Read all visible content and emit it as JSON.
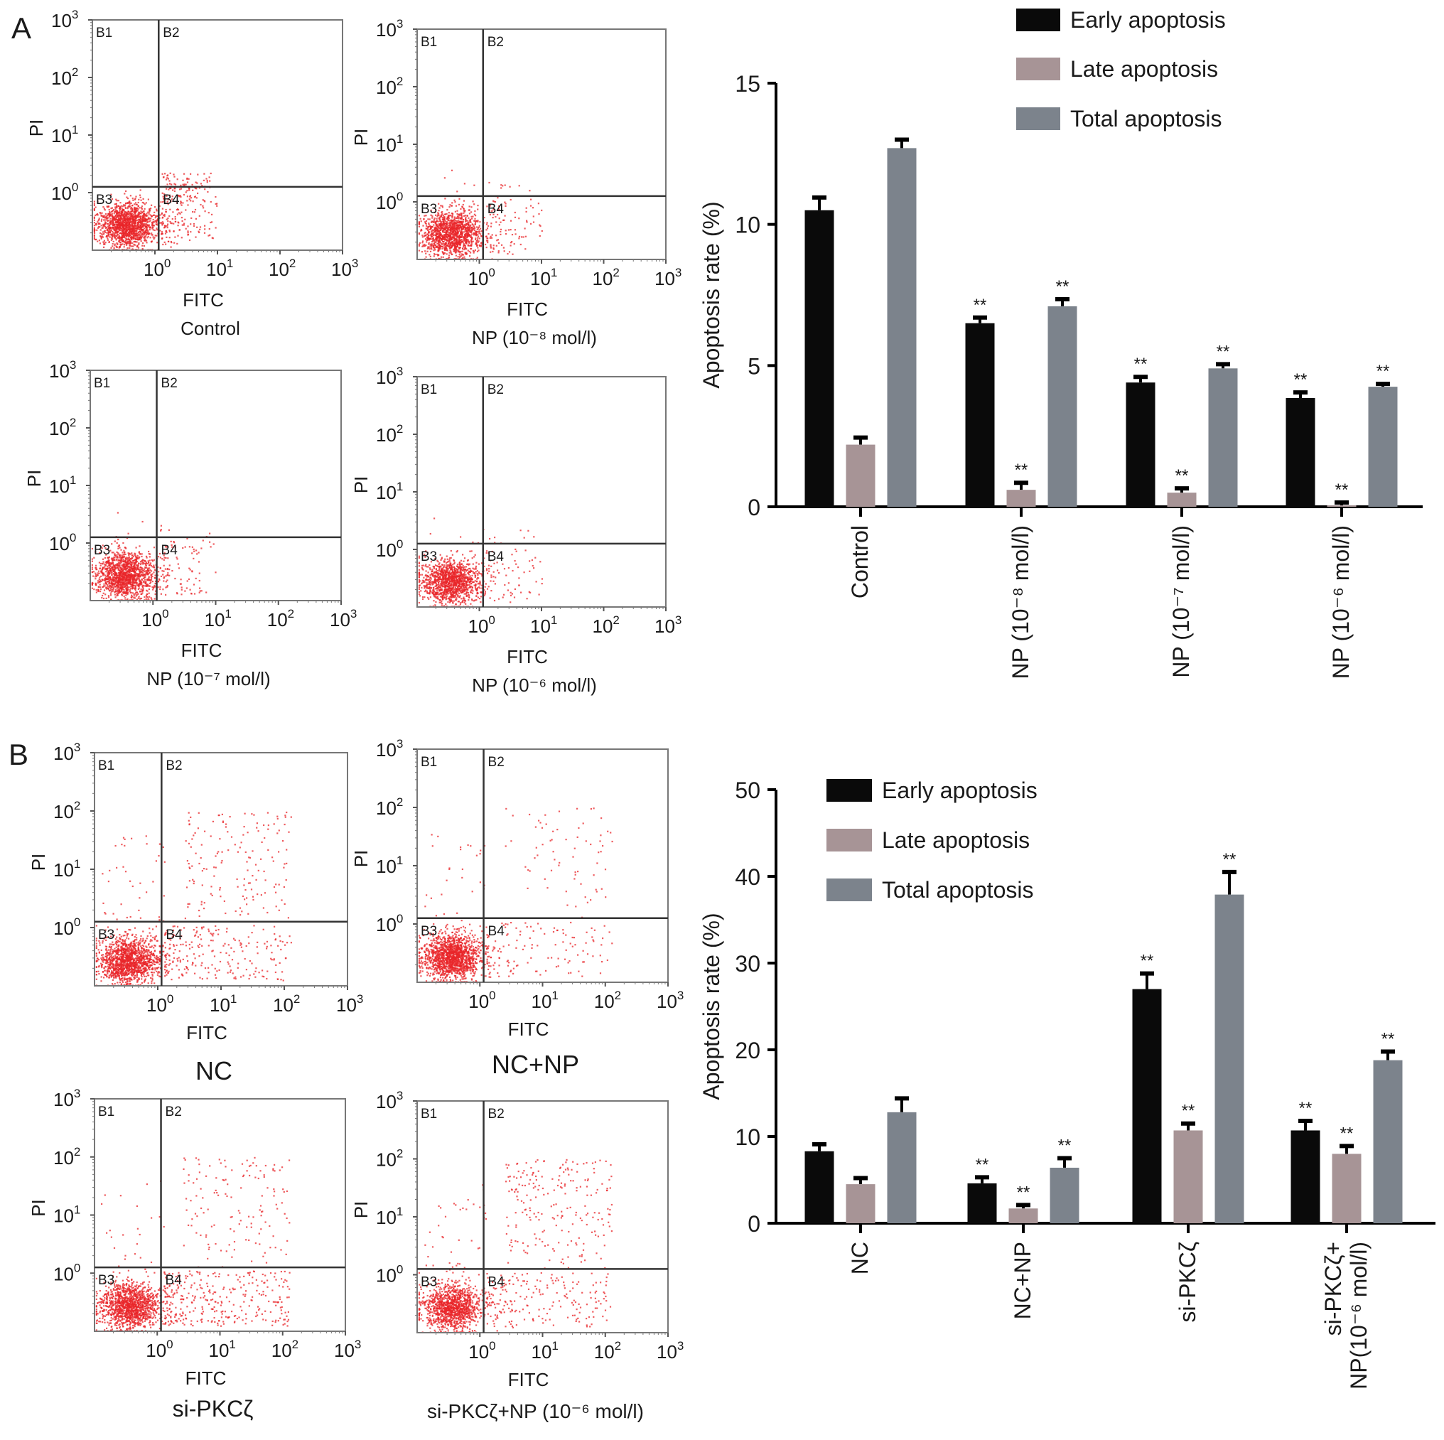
{
  "panel_labels": [
    "A",
    "B"
  ],
  "axis_ticks": {
    "base": "10",
    "exponents": [
      "0",
      "1",
      "2",
      "3"
    ]
  },
  "flow_plots": [
    {
      "panel": "A",
      "caption": "Control",
      "xlabel": "FITC",
      "ylabel": "PI",
      "quadrants": [
        "B1",
        "B2",
        "B3",
        "B4"
      ]
    },
    {
      "panel": "A",
      "caption": "NP (10⁻⁸ mol/l)",
      "xlabel": "FITC",
      "ylabel": "PI",
      "quadrants": [
        "B1",
        "B2",
        "B3",
        "B4"
      ]
    },
    {
      "panel": "A",
      "caption": "NP (10⁻⁷ mol/l)",
      "xlabel": "FITC",
      "ylabel": "PI",
      "quadrants": [
        "B1",
        "B2",
        "B3",
        "B4"
      ]
    },
    {
      "panel": "A",
      "caption": "NP (10⁻⁶ mol/l)",
      "xlabel": "FITC",
      "ylabel": "PI",
      "quadrants": [
        "B1",
        "B2",
        "B3",
        "B4"
      ]
    },
    {
      "panel": "B",
      "caption": "NC",
      "xlabel": "FITC",
      "ylabel": "PI",
      "quadrants": [
        "B1",
        "B2",
        "B3",
        "B4"
      ]
    },
    {
      "panel": "B",
      "caption": "NC+NP",
      "xlabel": "FITC",
      "ylabel": "PI",
      "quadrants": [
        "B1",
        "B2",
        "B3",
        "B4"
      ]
    },
    {
      "panel": "B",
      "caption": "si-PKCζ",
      "xlabel": "FITC",
      "ylabel": "PI",
      "quadrants": [
        "B1",
        "B2",
        "B3",
        "B4"
      ]
    },
    {
      "panel": "B",
      "caption": "si-PKCζ+NP (10⁻⁶ mol/l)",
      "xlabel": "FITC",
      "ylabel": "PI",
      "quadrants": [
        "B1",
        "B2",
        "B3",
        "B4"
      ]
    }
  ],
  "colors": {
    "early": "#0a0a0a",
    "late": "#a79496",
    "total": "#7c838c",
    "dots": "#e8262a"
  },
  "chart_data": [
    {
      "type": "bar",
      "panel": "A",
      "title": "",
      "xlabel": "",
      "ylabel": "Apoptosis rate (%)",
      "ylim": [
        0,
        15
      ],
      "yticks": [
        "0",
        "5",
        "10",
        "15"
      ],
      "ytick_values": [
        0,
        5,
        10,
        15
      ],
      "legend": "top-right",
      "categories": [
        [
          "Control"
        ],
        [
          "NP (10⁻⁸ mol/l)"
        ],
        [
          "NP (10⁻⁷ mol/l)"
        ],
        [
          "NP (10⁻⁶ mol/l)"
        ]
      ],
      "series": [
        {
          "name": "Early apoptosis",
          "key": "early",
          "values": [
            10.5,
            6.5,
            4.4,
            3.85
          ],
          "errors": [
            0.45,
            0.2,
            0.2,
            0.2
          ],
          "significance": [
            "",
            "**",
            "**",
            "**"
          ]
        },
        {
          "name": "Late apoptosis",
          "key": "late",
          "values": [
            2.2,
            0.6,
            0.5,
            0.05
          ],
          "errors": [
            0.25,
            0.25,
            0.15,
            0.1
          ],
          "significance": [
            "",
            "**",
            "**",
            "**"
          ]
        },
        {
          "name": "Total apoptosis",
          "key": "total",
          "values": [
            12.7,
            7.1,
            4.9,
            4.25
          ],
          "errors": [
            0.3,
            0.25,
            0.15,
            0.1
          ],
          "significance": [
            "",
            "**",
            "**",
            "**"
          ]
        }
      ]
    },
    {
      "type": "bar",
      "panel": "B",
      "title": "",
      "xlabel": "",
      "ylabel": "Apoptosis rate (%)",
      "ylim": [
        0,
        50
      ],
      "yticks": [
        "0",
        "10",
        "20",
        "30",
        "40",
        "50"
      ],
      "ytick_values": [
        0,
        10,
        20,
        30,
        40,
        50
      ],
      "legend": "top-left",
      "categories": [
        [
          "NC"
        ],
        [
          "NC+NP"
        ],
        [
          "si-PKCζ"
        ],
        [
          "si-PKCζ+",
          "NP(10⁻⁶ mol/l)"
        ]
      ],
      "series": [
        {
          "name": "Early apoptosis",
          "key": "early",
          "values": [
            8.3,
            4.6,
            27.0,
            10.7
          ],
          "errors": [
            0.8,
            0.7,
            1.8,
            1.1
          ],
          "significance": [
            "",
            "**",
            "**",
            "**"
          ]
        },
        {
          "name": "Late apoptosis",
          "key": "late",
          "values": [
            4.5,
            1.7,
            10.7,
            8.0
          ],
          "errors": [
            0.7,
            0.4,
            0.8,
            0.9
          ],
          "significance": [
            "",
            "**",
            "**",
            "**"
          ]
        },
        {
          "name": "Total apoptosis",
          "key": "total",
          "values": [
            12.8,
            6.4,
            37.9,
            18.8
          ],
          "errors": [
            1.6,
            1.1,
            2.6,
            1.0
          ],
          "significance": [
            "",
            "**",
            "**",
            "**"
          ]
        }
      ]
    }
  ]
}
